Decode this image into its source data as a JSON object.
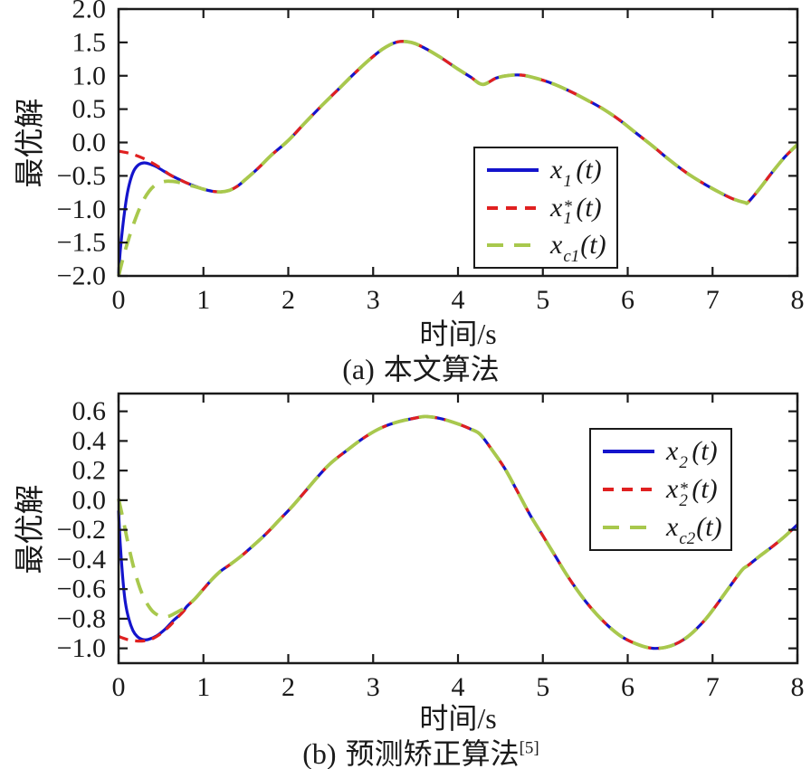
{
  "figure": {
    "background": "#ffffff",
    "axis_color": "#1a1a1a",
    "colors": {
      "blue": "#1414cc",
      "red": "#e02020",
      "green": "#a8c84d"
    }
  },
  "chart_data": [
    {
      "type": "line",
      "caption_prefix": "(a)",
      "caption_text": "本文算法",
      "caption_sup": "",
      "xlabel": "时间/s",
      "ylabel": "最优解",
      "x_range": [
        0,
        8
      ],
      "y_range": [
        -2.0,
        2.0
      ],
      "grid": false,
      "legend_position": "inside-lower-right",
      "x_tick_values": [
        0,
        1,
        2,
        3,
        4,
        5,
        6,
        7,
        8
      ],
      "x_tick_labels": [
        "0",
        "1",
        "2",
        "3",
        "4",
        "5",
        "6",
        "7",
        "8"
      ],
      "y_tick_values": [
        2.0,
        1.5,
        1.0,
        0.5,
        0.0,
        -0.5,
        -1.0,
        -1.5,
        -2.0
      ],
      "y_tick_labels": [
        "2.0",
        "1.5",
        "1.0",
        "0.5",
        "0.0",
        "−0.5",
        "−1.0",
        "−1.5",
        "−2.0"
      ],
      "legend": [
        {
          "base": "x",
          "sup": "",
          "sub": "1",
          "rest": "(t)"
        },
        {
          "base": "x",
          "sup": "*",
          "sub": "1",
          "rest": "(t)"
        },
        {
          "base": "x",
          "sup": "",
          "sub": "c1",
          "rest": "(t)"
        }
      ],
      "common_points": [
        [
          0.6,
          -0.48
        ],
        [
          0.7,
          -0.545
        ],
        [
          0.8,
          -0.605
        ],
        [
          0.9,
          -0.655
        ],
        [
          1.0,
          -0.7
        ],
        [
          1.1,
          -0.73
        ],
        [
          1.2,
          -0.74
        ],
        [
          1.3,
          -0.72
        ],
        [
          1.4,
          -0.655
        ],
        [
          1.5,
          -0.55
        ],
        [
          1.65,
          -0.38
        ],
        [
          1.8,
          -0.19
        ],
        [
          2.0,
          0.03
        ],
        [
          2.2,
          0.3
        ],
        [
          2.4,
          0.56
        ],
        [
          2.6,
          0.81
        ],
        [
          2.8,
          1.06
        ],
        [
          3.0,
          1.29
        ],
        [
          3.15,
          1.43
        ],
        [
          3.3,
          1.51
        ],
        [
          3.45,
          1.5
        ],
        [
          3.6,
          1.42
        ],
        [
          3.8,
          1.27
        ],
        [
          4.0,
          1.1
        ],
        [
          4.15,
          0.98
        ],
        [
          4.29,
          0.87
        ],
        [
          4.45,
          0.965
        ],
        [
          4.6,
          1.005
        ],
        [
          4.75,
          1.01
        ],
        [
          4.9,
          0.97
        ],
        [
          5.1,
          0.89
        ],
        [
          5.3,
          0.78
        ],
        [
          5.5,
          0.65
        ],
        [
          5.7,
          0.51
        ],
        [
          5.9,
          0.34
        ],
        [
          6.1,
          0.14
        ],
        [
          6.3,
          -0.06
        ],
        [
          6.5,
          -0.27
        ],
        [
          6.7,
          -0.46
        ],
        [
          6.9,
          -0.62
        ],
        [
          7.1,
          -0.76
        ],
        [
          7.25,
          -0.85
        ],
        [
          7.38,
          -0.9
        ],
        [
          7.42,
          -0.895
        ],
        [
          7.55,
          -0.7
        ],
        [
          7.7,
          -0.45
        ],
        [
          7.85,
          -0.22
        ],
        [
          8.0,
          -0.03
        ]
      ],
      "series": [
        {
          "name": "x1",
          "color": "#1414cc",
          "dash": "solid",
          "width": 3.2,
          "merge_t": 0.6,
          "prefix": [
            [
              0,
              -2.0
            ],
            [
              0.02,
              -1.62
            ],
            [
              0.05,
              -1.25
            ],
            [
              0.08,
              -0.95
            ],
            [
              0.11,
              -0.72
            ],
            [
              0.15,
              -0.52
            ],
            [
              0.19,
              -0.4
            ],
            [
              0.24,
              -0.33
            ],
            [
              0.3,
              -0.305
            ],
            [
              0.36,
              -0.32
            ],
            [
              0.44,
              -0.36
            ],
            [
              0.52,
              -0.42
            ]
          ]
        },
        {
          "name": "x1*",
          "color": "#e02020",
          "dash": "dash",
          "width": 3.2,
          "merge_t": 0.6,
          "prefix": [
            [
              0,
              -0.13
            ],
            [
              0.12,
              -0.16
            ],
            [
              0.24,
              -0.21
            ],
            [
              0.36,
              -0.28
            ],
            [
              0.48,
              -0.37
            ]
          ]
        },
        {
          "name": "xc1",
          "color": "#a8c84d",
          "dash": "longdash",
          "width": 3.8,
          "merge_t": 1.0,
          "prefix": [
            [
              0,
              -2.0
            ],
            [
              0.06,
              -1.7
            ],
            [
              0.12,
              -1.44
            ],
            [
              0.18,
              -1.21
            ],
            [
              0.24,
              -1.01
            ],
            [
              0.3,
              -0.85
            ],
            [
              0.36,
              -0.73
            ],
            [
              0.42,
              -0.65
            ],
            [
              0.48,
              -0.605
            ],
            [
              0.54,
              -0.585
            ],
            [
              0.6,
              -0.58
            ],
            [
              0.68,
              -0.59
            ],
            [
              0.78,
              -0.62
            ],
            [
              0.88,
              -0.655
            ],
            [
              0.95,
              -0.68
            ]
          ]
        }
      ]
    },
    {
      "type": "line",
      "caption_prefix": "(b)",
      "caption_text": "预测矫正算法",
      "caption_sup": "[5]",
      "xlabel": "时间/s",
      "ylabel": "最优解",
      "x_range": [
        0,
        8
      ],
      "y_range": [
        -1.1,
        0.72
      ],
      "grid": false,
      "legend_position": "inside-upper-right",
      "x_tick_values": [
        0,
        1,
        2,
        3,
        4,
        5,
        6,
        7,
        8
      ],
      "x_tick_labels": [
        "0",
        "1",
        "2",
        "3",
        "4",
        "5",
        "6",
        "7",
        "8"
      ],
      "y_tick_values": [
        0.6,
        0.4,
        0.2,
        0.0,
        -0.2,
        -0.4,
        -0.6,
        -0.8,
        -1.0
      ],
      "y_tick_labels": [
        "0.6",
        "0.4",
        "0.2",
        "0.0",
        "−0.2",
        "−0.4",
        "−0.6",
        "−0.8",
        "−1.0"
      ],
      "legend": [
        {
          "base": "x",
          "sup": "",
          "sub": "2",
          "rest": "(t)"
        },
        {
          "base": "x",
          "sup": "*",
          "sub": "2",
          "rest": "(t)"
        },
        {
          "base": "x",
          "sup": "",
          "sub": "c2",
          "rest": "(t)"
        }
      ],
      "common_points": [
        [
          0.8,
          -0.72
        ],
        [
          0.9,
          -0.665
        ],
        [
          1.0,
          -0.6
        ],
        [
          1.1,
          -0.535
        ],
        [
          1.2,
          -0.48
        ],
        [
          1.3,
          -0.44
        ],
        [
          1.45,
          -0.375
        ],
        [
          1.6,
          -0.3
        ],
        [
          1.75,
          -0.22
        ],
        [
          1.9,
          -0.13
        ],
        [
          2.05,
          -0.04
        ],
        [
          2.2,
          0.06
        ],
        [
          2.35,
          0.16
        ],
        [
          2.5,
          0.25
        ],
        [
          2.7,
          0.34
        ],
        [
          2.9,
          0.425
        ],
        [
          3.1,
          0.49
        ],
        [
          3.3,
          0.53
        ],
        [
          3.5,
          0.555
        ],
        [
          3.62,
          0.565
        ],
        [
          3.8,
          0.55
        ],
        [
          4.0,
          0.515
        ],
        [
          4.15,
          0.48
        ],
        [
          4.26,
          0.445
        ],
        [
          4.4,
          0.34
        ],
        [
          4.55,
          0.215
        ],
        [
          4.7,
          0.06
        ],
        [
          4.85,
          -0.1
        ],
        [
          5.0,
          -0.24
        ],
        [
          5.15,
          -0.38
        ],
        [
          5.3,
          -0.52
        ],
        [
          5.5,
          -0.68
        ],
        [
          5.7,
          -0.81
        ],
        [
          5.9,
          -0.91
        ],
        [
          6.1,
          -0.97
        ],
        [
          6.3,
          -1.0
        ],
        [
          6.5,
          -0.985
        ],
        [
          6.7,
          -0.925
        ],
        [
          6.9,
          -0.815
        ],
        [
          7.05,
          -0.705
        ],
        [
          7.2,
          -0.585
        ],
        [
          7.35,
          -0.47
        ],
        [
          7.42,
          -0.44
        ],
        [
          7.55,
          -0.38
        ],
        [
          7.7,
          -0.315
        ],
        [
          7.85,
          -0.245
        ],
        [
          8.0,
          -0.165
        ]
      ],
      "series": [
        {
          "name": "x2",
          "color": "#1414cc",
          "dash": "solid",
          "width": 3.2,
          "merge_t": 0.8,
          "prefix": [
            [
              0,
              -0.07
            ],
            [
              0.02,
              -0.3
            ],
            [
              0.05,
              -0.53
            ],
            [
              0.08,
              -0.69
            ],
            [
              0.12,
              -0.8
            ],
            [
              0.17,
              -0.88
            ],
            [
              0.22,
              -0.92
            ],
            [
              0.28,
              -0.94
            ],
            [
              0.35,
              -0.94
            ],
            [
              0.45,
              -0.915
            ],
            [
              0.55,
              -0.87
            ],
            [
              0.65,
              -0.81
            ],
            [
              0.75,
              -0.76
            ]
          ]
        },
        {
          "name": "x2*",
          "color": "#e02020",
          "dash": "dash",
          "width": 3.2,
          "merge_t": 0.8,
          "prefix": [
            [
              0,
              -0.92
            ],
            [
              0.1,
              -0.94
            ],
            [
              0.2,
              -0.95
            ],
            [
              0.3,
              -0.95
            ],
            [
              0.4,
              -0.935
            ],
            [
              0.5,
              -0.9
            ],
            [
              0.6,
              -0.85
            ],
            [
              0.7,
              -0.79
            ],
            [
              0.78,
              -0.74
            ]
          ]
        },
        {
          "name": "xc2",
          "color": "#a8c84d",
          "dash": "longdash",
          "width": 3.8,
          "merge_t": 0.8,
          "prefix": [
            [
              0,
              0.01
            ],
            [
              0.05,
              -0.12
            ],
            [
              0.1,
              -0.26
            ],
            [
              0.15,
              -0.39
            ],
            [
              0.2,
              -0.5
            ],
            [
              0.25,
              -0.59
            ],
            [
              0.3,
              -0.66
            ],
            [
              0.36,
              -0.72
            ],
            [
              0.42,
              -0.76
            ],
            [
              0.5,
              -0.785
            ],
            [
              0.58,
              -0.785
            ],
            [
              0.66,
              -0.765
            ],
            [
              0.74,
              -0.74
            ]
          ]
        }
      ]
    }
  ]
}
